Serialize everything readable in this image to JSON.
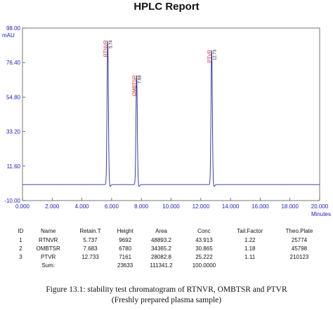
{
  "report": {
    "title": "HPLC Report"
  },
  "chart_data": {
    "type": "line",
    "y_unit_label": "mAU",
    "xlabel": "Minutes",
    "x_range": [
      0,
      20
    ],
    "ylim": [
      -10,
      98
    ],
    "x_ticks": [
      "0.000",
      "2.000",
      "4.000",
      "6.000",
      "8.000",
      "10.000",
      "12.000",
      "14.000",
      "16.000",
      "18.000",
      "20.000"
    ],
    "y_ticks": [
      "98.00",
      "76.40",
      "54.80",
      "33.20",
      "11.60",
      "-10.00"
    ],
    "x_tick_values": [
      0,
      2,
      4,
      6,
      8,
      10,
      12,
      14,
      16,
      18,
      20
    ],
    "y_tick_values": [
      98,
      76.4,
      54.8,
      33.2,
      11.6,
      -10
    ],
    "baseline": 0,
    "grid": false,
    "peaks": [
      {
        "name": "RTNVR",
        "time_label": "5.74",
        "time": 5.737,
        "height": 90
      },
      {
        "name": "OMBTSR",
        "time_label": "7.68",
        "time": 7.683,
        "height": 68
      },
      {
        "name": "PTVR",
        "time_label": "12.73",
        "time": 12.733,
        "height": 84
      }
    ],
    "colors": {
      "trace": "#2a2aa0",
      "peak_label": "#d42020",
      "time_label": "#222222",
      "frame": "#555555",
      "axis_tick": "#2020c0"
    }
  },
  "table": {
    "headers": [
      "ID",
      "Name",
      "Retain.T",
      "Height",
      "Area",
      "Conc",
      "Tail.Factor",
      "Theo.Plate"
    ],
    "rows": [
      [
        "1",
        "RTNVR",
        "5.737",
        "9692",
        "48893.2",
        "43.913",
        "1.22",
        "25774"
      ],
      [
        "2",
        "OMBTSR",
        "7.683",
        "6780",
        "34365.2",
        "30.865",
        "1.18",
        "45798"
      ],
      [
        "3",
        "PTVR",
        "12.733",
        "7161",
        "28082.8",
        "25.222",
        "1.11",
        "210123"
      ]
    ],
    "sum": [
      "",
      "Sum:",
      "",
      "23633",
      "111341.2",
      "100.0000",
      "",
      ""
    ]
  },
  "caption": {
    "line1": "Figure 13.1: stability test chromatogram of RTNVR, OMBTSR and PTVR",
    "line2": "(Freshly prepared plasma sample)"
  }
}
